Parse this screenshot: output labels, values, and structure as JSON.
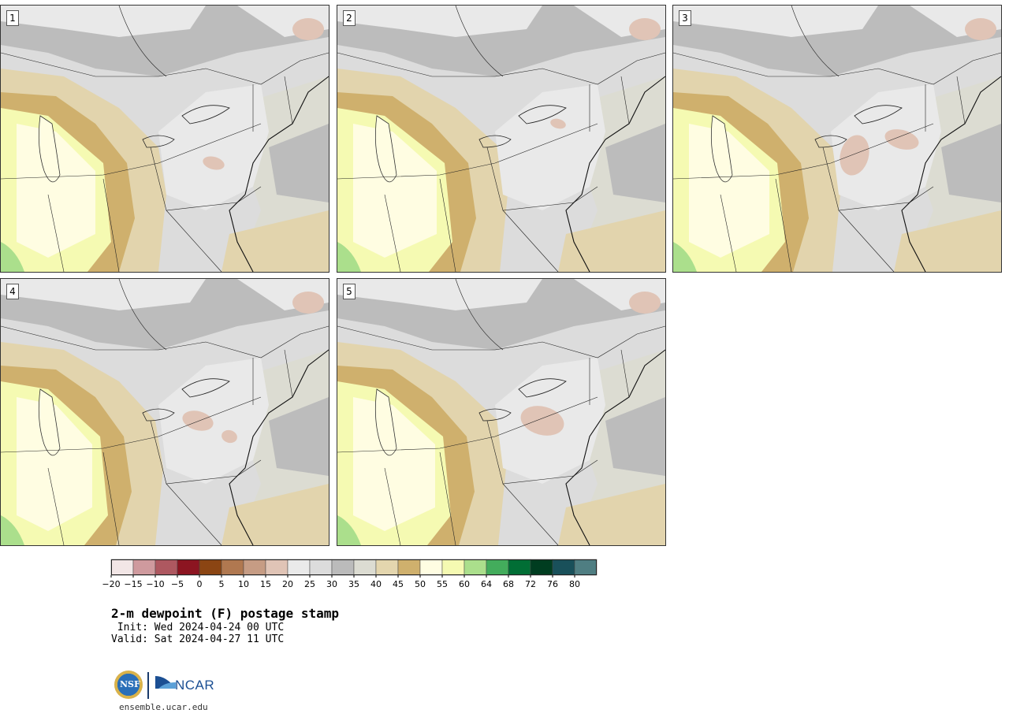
{
  "panels": [
    {
      "label": "1",
      "warm_shift": 0.0,
      "dry_core": "ny-pa"
    },
    {
      "label": "2",
      "warm_shift": 0.15,
      "dry_core": "ny"
    },
    {
      "label": "3",
      "warm_shift": 0.05,
      "dry_core": "pa-north"
    },
    {
      "label": "4",
      "warm_shift": -0.1,
      "dry_core": "pa-west"
    },
    {
      "label": "5",
      "warm_shift": 0.1,
      "dry_core": "pa-central"
    }
  ],
  "colorbar": {
    "colors": [
      "#f2e6e6",
      "#cf9a9e",
      "#ae5860",
      "#8c1521",
      "#8b4513",
      "#b07850",
      "#c69c84",
      "#e0c4b6",
      "#eaeaea",
      "#dcdcdc",
      "#bbbbbb",
      "#dcdcd2",
      "#e4d6ae",
      "#cfb06d",
      "#fffde2",
      "#f5fab2",
      "#abdf8c",
      "#43ac5c",
      "#016e35",
      "#003d20",
      "#19505a",
      "#4f7e82"
    ],
    "ticks": [
      "−20",
      "−15",
      "−10",
      "−5",
      "0",
      "5",
      "10",
      "15",
      "20",
      "25",
      "30",
      "35",
      "40",
      "45",
      "50",
      "55",
      "60",
      "64",
      "68",
      "72",
      "76",
      "80"
    ]
  },
  "title": {
    "main": "2-m dewpoint (F) postage stamp",
    "init": " Init: Wed 2024-04-24 00 UTC",
    "valid": "Valid: Sat 2024-04-27 11 UTC"
  },
  "logos": {
    "nsf": "NSF",
    "ncar": "NCAR"
  },
  "site": "ensemble.ucar.edu"
}
